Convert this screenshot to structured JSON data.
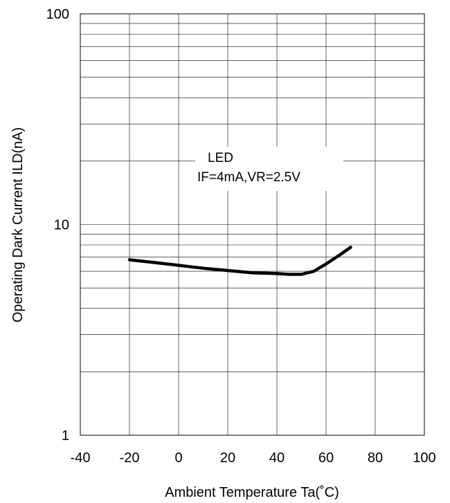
{
  "chart_data": {
    "type": "line",
    "xlabel": "Ambient Temperature Ta(˚C)",
    "ylabel": "Operating Dark Current ILD(nA)",
    "xlim": [
      -40,
      100
    ],
    "ylim": [
      1,
      100
    ],
    "yscale": "log",
    "grid": true,
    "x_ticks": [
      "-40",
      "-20",
      "0",
      "20",
      "40",
      "60",
      "80",
      "100"
    ],
    "y_ticks": [
      "1",
      "10",
      "100"
    ],
    "annotation": {
      "line1": "LED",
      "line2": "IF=4mA,VR=2.5V"
    },
    "series": [
      {
        "x": [
          -20,
          -10,
          0,
          10,
          20,
          30,
          40,
          45,
          50,
          55,
          60,
          65,
          70
        ],
        "y": [
          6.8,
          6.6,
          6.4,
          6.2,
          6.05,
          5.9,
          5.85,
          5.8,
          5.8,
          6.0,
          6.5,
          7.1,
          7.8
        ]
      }
    ]
  }
}
